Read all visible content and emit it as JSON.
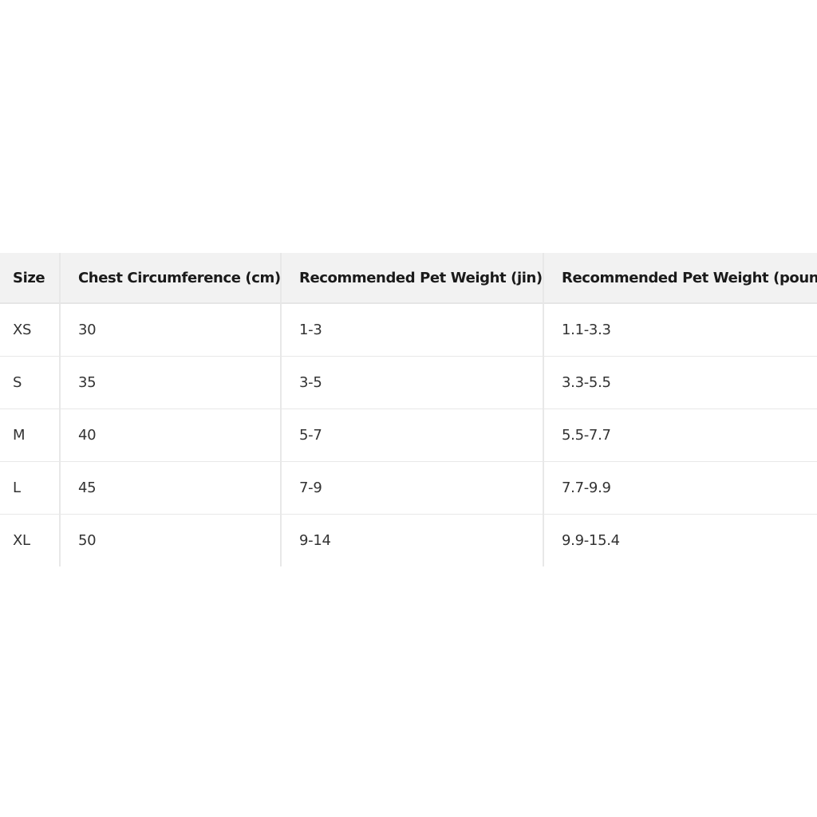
{
  "table": {
    "headers": [
      "Size",
      "Chest Circumference (cm)",
      "Recommended Pet Weight (jin)",
      "Recommended Pet Weight (pound)"
    ],
    "rows": [
      [
        "XS",
        "30",
        "1-3",
        "1.1-3.3"
      ],
      [
        "S",
        "35",
        "3-5",
        "3.3-5.5"
      ],
      [
        "M",
        "40",
        "5-7",
        "5.5-7.7"
      ],
      [
        "L",
        "45",
        "7-9",
        "7.7-9.9"
      ],
      [
        "XL",
        "50",
        "9-14",
        "9.9-15.4"
      ]
    ]
  }
}
